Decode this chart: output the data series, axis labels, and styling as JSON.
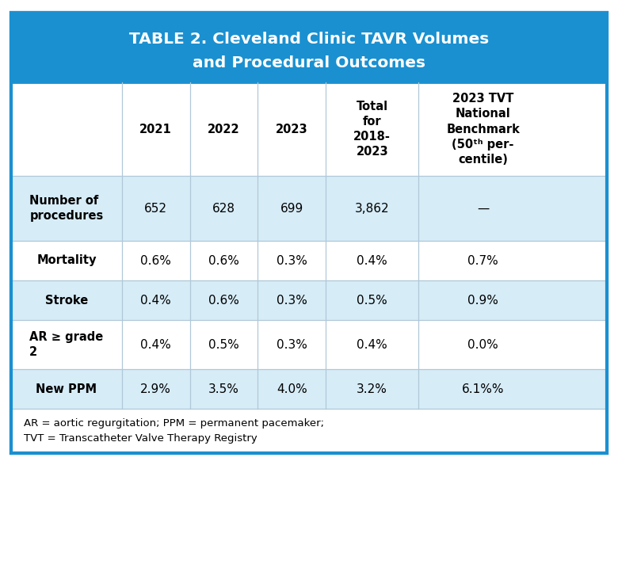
{
  "title_line1": "TABLE 2. Cleveland Clinic TAVR Volumes",
  "title_line2": "and Procedural Outcomes",
  "title_bg": "#1a90d0",
  "title_color": "#ffffff",
  "col_headers": [
    "",
    "2021",
    "2022",
    "2023",
    "Total\nfor\n2018-\n2023",
    "2023 TVT\nNational\nBenchmark\n(50ᵗʰ per-\ncentile)"
  ],
  "row_labels": [
    "Number of\nprocedures",
    "Mortality",
    "Stroke",
    "AR ≥ grade\n2",
    "New PPM"
  ],
  "row_data": [
    [
      "652",
      "628",
      "699",
      "3,862",
      "—"
    ],
    [
      "0.6%",
      "0.6%",
      "0.3%",
      "0.4%",
      "0.7%"
    ],
    [
      "0.4%",
      "0.6%",
      "0.3%",
      "0.5%",
      "0.9%"
    ],
    [
      "0.4%",
      "0.5%",
      "0.3%",
      "0.4%",
      "0.0%"
    ],
    [
      "2.9%",
      "3.5%",
      "4.0%",
      "3.2%",
      "6.1%%"
    ]
  ],
  "row_bg_light": "#d6ecf7",
  "row_bg_white": "#ffffff",
  "footer": "AR = aortic regurgitation; PPM = permanent pacemaker;\nTVT = Transcatheter Valve Therapy Registry",
  "outer_border": "#1a90d0",
  "grid_color": "#b0c8d8",
  "title_fontsize": 14.5,
  "header_fontsize": 10.5,
  "data_fontsize": 11,
  "label_fontsize": 10.5,
  "footer_fontsize": 9.5
}
